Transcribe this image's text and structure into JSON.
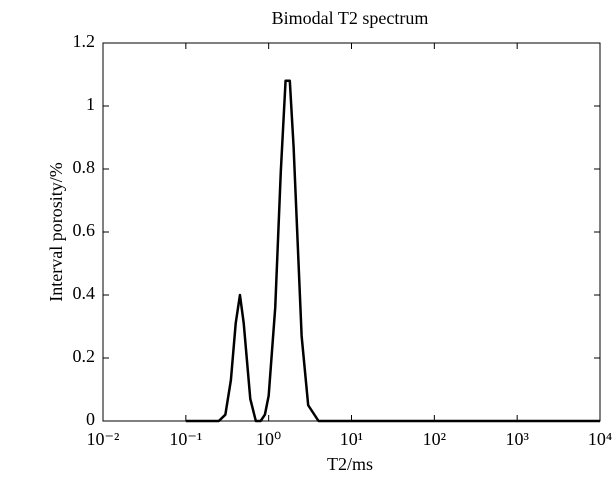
{
  "chart_data": {
    "type": "line",
    "title": "Bimodal T2 spectrum",
    "x_label": "T2/ms",
    "y_label": "Interval porosity/%",
    "x": [
      0.1,
      0.2,
      0.25,
      0.3,
      0.35,
      0.4,
      0.45,
      0.5,
      0.6,
      0.7,
      0.8,
      0.9,
      1,
      1.2,
      1.4,
      1.6,
      1.8,
      2,
      2.5,
      3,
      4,
      5,
      7,
      10,
      100,
      1000,
      10000
    ],
    "values": [
      0,
      0,
      0,
      0.02,
      0.13,
      0.31,
      0.4,
      0.31,
      0.07,
      0,
      0,
      0.02,
      0.08,
      0.36,
      0.79,
      1.08,
      1.08,
      0.87,
      0.27,
      0.05,
      0,
      0,
      0,
      0,
      0,
      0,
      0
    ],
    "color": "#000000",
    "xscale": "log",
    "xlim": [
      0.01,
      10000
    ],
    "xticks": [
      {
        "value": 0.01,
        "label": "10⁻²"
      },
      {
        "value": 0.1,
        "label": "10⁻¹"
      },
      {
        "value": 1,
        "label": "10⁰"
      },
      {
        "value": 10,
        "label": "10¹"
      },
      {
        "value": 100,
        "label": "10²"
      },
      {
        "value": 1000,
        "label": "10³"
      },
      {
        "value": 10000,
        "label": "10⁴"
      }
    ],
    "ylim": [
      0,
      1.2
    ],
    "yticks": [
      0,
      0.2,
      0.4,
      0.6,
      0.8,
      1,
      1.2
    ],
    "grid": false
  }
}
